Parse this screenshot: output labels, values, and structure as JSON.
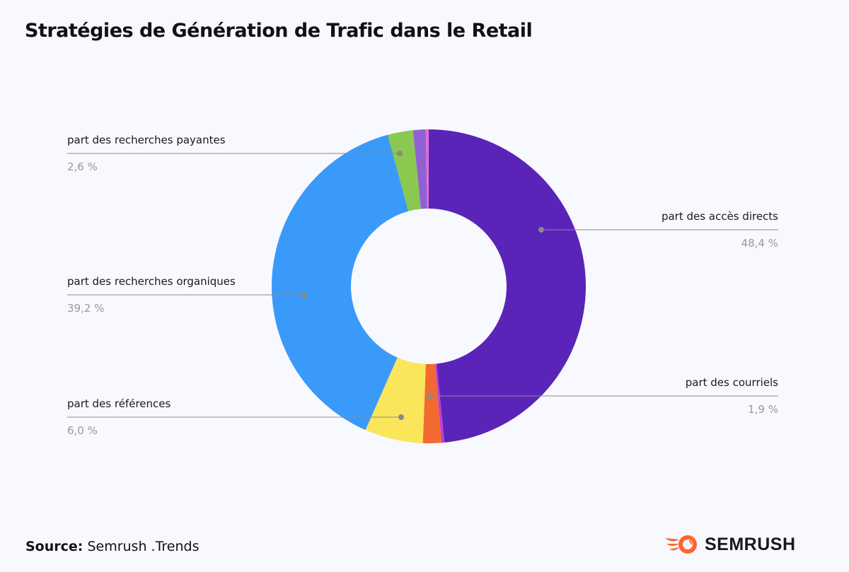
{
  "chart_data": {
    "type": "pie",
    "variant": "donut",
    "title": "Stratégies de Génération de Trafic dans le Retail",
    "start": "top",
    "direction": "clockwise",
    "slices": [
      {
        "label": "part des accès directs",
        "value": 48.4,
        "value_label": "48,4 %",
        "color": "#5a24b8"
      },
      {
        "label": "",
        "value": 0.3,
        "color": "#c13ad8"
      },
      {
        "label": "part des courriels",
        "value": 1.9,
        "value_label": "1,9 %",
        "color": "#f26a30"
      },
      {
        "label": "part des références",
        "value": 6.0,
        "value_label": "6,0 %",
        "color": "#fbe55a"
      },
      {
        "label": "part des recherches organiques",
        "value": 39.2,
        "value_label": "39,2 %",
        "color": "#3a9afa"
      },
      {
        "label": "part des recherches payantes",
        "value": 2.6,
        "value_label": "2,6 %",
        "color": "#8bc84f"
      },
      {
        "label": "",
        "value": 1.3,
        "color": "#8f62d4"
      },
      {
        "label": "",
        "value": 0.3,
        "color": "#e06fd6"
      }
    ]
  },
  "footer": {
    "source_label": "Source:",
    "source_value": "Semrush .Trends",
    "logo_text": "SEMRUSH",
    "logo_color": "#ff642d"
  }
}
